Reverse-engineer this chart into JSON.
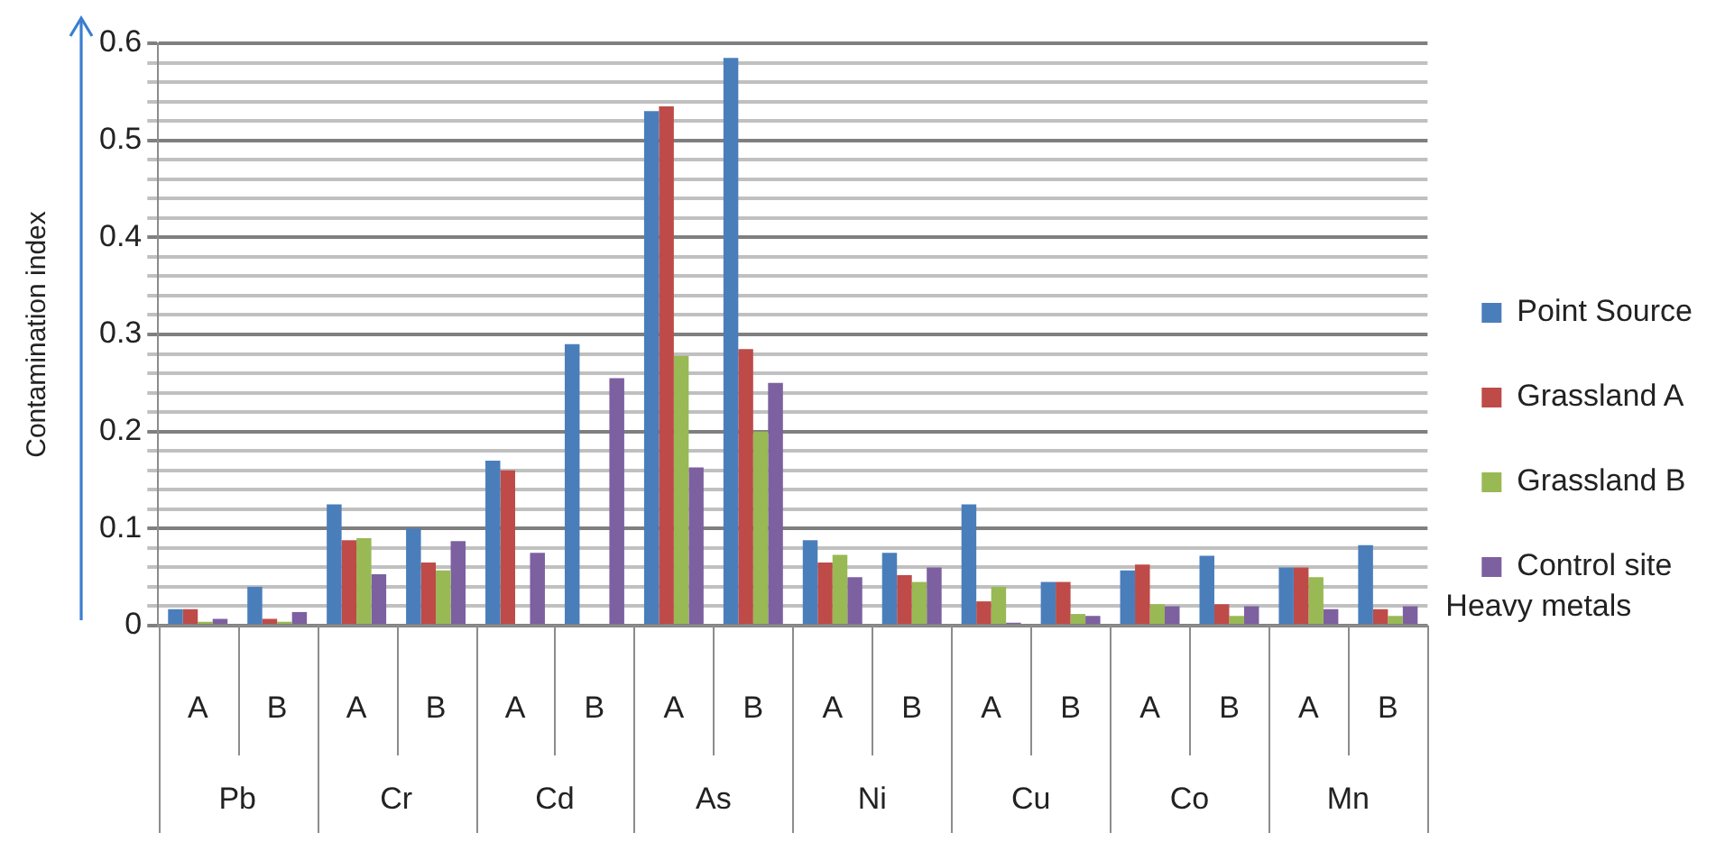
{
  "chart_data": {
    "type": "bar",
    "ylabel": "Contamination index",
    "xlabel": "Heavy metals",
    "categories": [
      "A",
      "B",
      "A",
      "B",
      "A",
      "B",
      "A",
      "B",
      "A",
      "B",
      "A",
      "B",
      "A",
      "B",
      "A",
      "B"
    ],
    "annotations": [
      "Pb",
      "Cr",
      "Cd",
      "As",
      "Ni",
      "Cu",
      "Co",
      "Mn"
    ],
    "series": [
      {
        "name": "Point Source",
        "color": "#4a7ebb",
        "values": [
          0.017,
          0.04,
          0.125,
          0.1,
          0.17,
          0.29,
          0.53,
          0.585,
          0.088,
          0.075,
          0.125,
          0.045,
          0.057,
          0.072,
          0.06,
          0.083
        ]
      },
      {
        "name": "Grassland A",
        "color": "#be4b48",
        "values": [
          0.017,
          0.007,
          0.088,
          0.065,
          0.16,
          0,
          0.535,
          0.285,
          0.065,
          0.052,
          0.025,
          0.045,
          0.063,
          0.022,
          0.06,
          0.017
        ]
      },
      {
        "name": "Grassland B",
        "color": "#98b954",
        "values": [
          0.004,
          0.004,
          0.09,
          0.057,
          0,
          0,
          0.278,
          0.2,
          0.073,
          0.045,
          0.04,
          0.012,
          0.022,
          0.01,
          0.05,
          0.01
        ]
      },
      {
        "name": "Control site",
        "color": "#7d60a0",
        "values": [
          0.007,
          0.014,
          0.053,
          0.087,
          0.075,
          0.255,
          0.163,
          0.25,
          0.05,
          0.06,
          0.003,
          0.01,
          0.02,
          0.02,
          0.017,
          0.02
        ]
      }
    ],
    "ylim": [
      0,
      0.6
    ],
    "yticks": [
      0,
      {
        "value": 0.02,
        "label": null
      },
      {
        "value": 0.04,
        "label": null
      },
      {
        "value": 0.06,
        "label": null
      },
      {
        "value": 0.08,
        "label": null
      },
      0.1,
      {
        "value": 0.12,
        "label": null
      },
      {
        "value": 0.14,
        "label": null
      },
      {
        "value": 0.16,
        "label": null
      },
      {
        "value": 0.18,
        "label": null
      },
      0.2,
      {
        "value": 0.22,
        "label": null
      },
      {
        "value": 0.24,
        "label": null
      },
      {
        "value": 0.26,
        "label": null
      },
      {
        "value": 0.28,
        "label": null
      },
      0.3,
      {
        "value": 0.32,
        "label": null
      },
      {
        "value": 0.34,
        "label": null
      },
      {
        "value": 0.36,
        "label": null
      },
      {
        "value": 0.38,
        "label": null
      },
      0.4,
      {
        "value": 0.42,
        "label": null
      },
      {
        "value": 0.44,
        "label": null
      },
      {
        "value": 0.46,
        "label": null
      },
      {
        "value": 0.48,
        "label": null
      },
      0.5,
      {
        "value": 0.52,
        "label": null
      },
      {
        "value": 0.54,
        "label": null
      },
      {
        "value": 0.56,
        "label": null
      },
      {
        "value": 0.58,
        "label": null
      },
      0.6
    ],
    "grid": "y",
    "legend": "right"
  }
}
